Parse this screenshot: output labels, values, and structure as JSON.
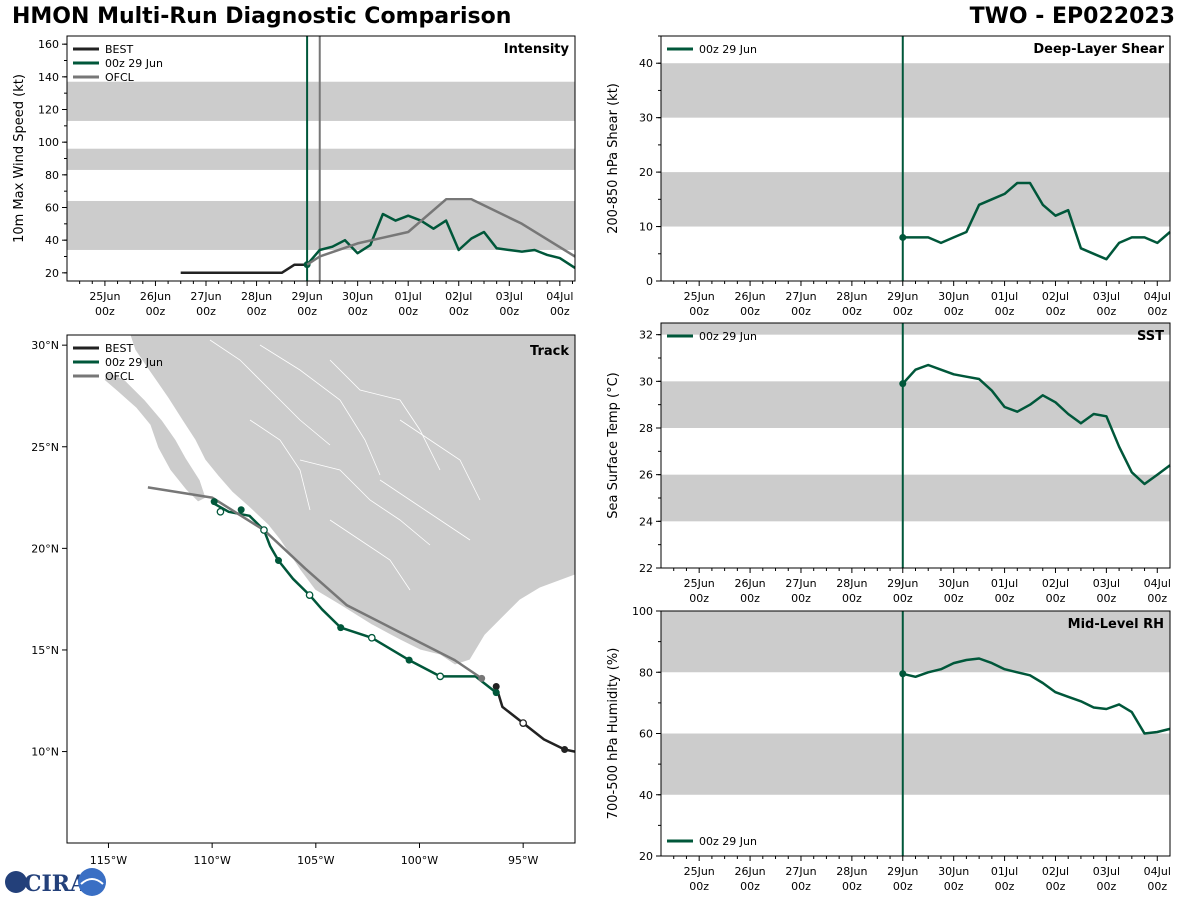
{
  "header": {
    "title": "HMON Multi-Run Diagnostic Comparison",
    "storm_id": "TWO - EP022023"
  },
  "logo": {
    "text": "CIRA",
    "icon": "cira-logo"
  },
  "colors": {
    "best": "#222222",
    "run": "#00573a",
    "ofcl": "#777777",
    "band": "#cccccc",
    "land": "#cccccc"
  },
  "legend": {
    "best": "BEST",
    "run": "00z 29 Jun",
    "ofcl": "OFCL"
  },
  "time_ticks": [
    [
      "25Jun",
      "00z"
    ],
    [
      "26Jun",
      "00z"
    ],
    [
      "27Jun",
      "00z"
    ],
    [
      "28Jun",
      "00z"
    ],
    [
      "29Jun",
      "00z"
    ],
    [
      "30Jun",
      "00z"
    ],
    [
      "01Jul",
      "00z"
    ],
    [
      "02Jul",
      "00z"
    ],
    [
      "03Jul",
      "00z"
    ],
    [
      "04Jul",
      "00z"
    ]
  ],
  "chart_data": [
    {
      "id": "intensity",
      "type": "line",
      "title": "Intensity",
      "ylabel": "10m Max Wind Speed (kt)",
      "x_unit": "days since 25Jun 00z",
      "xlim": [
        -0.75,
        9.3
      ],
      "ylim": [
        15,
        165
      ],
      "yticks": [
        20,
        40,
        60,
        80,
        100,
        120,
        140,
        160
      ],
      "bands": [
        [
          34,
          64
        ],
        [
          83,
          96
        ],
        [
          113,
          137
        ]
      ],
      "vlines": [
        {
          "x": 4.0,
          "color": "run"
        },
        {
          "x": 4.25,
          "color": "ofcl"
        }
      ],
      "series": [
        {
          "name": "BEST",
          "color": "best",
          "x": [
            1.5,
            2.0,
            2.5,
            3.0,
            3.5,
            3.75,
            4.0
          ],
          "y": [
            20,
            20,
            20,
            20,
            20,
            25,
            25
          ]
        },
        {
          "name": "00z 29 Jun",
          "color": "run",
          "marker_x": 4.0,
          "x": [
            4.0,
            4.25,
            4.5,
            4.75,
            5.0,
            5.25,
            5.5,
            5.75,
            6.0,
            6.25,
            6.5,
            6.75,
            7.0,
            7.25,
            7.5,
            7.75,
            8.0,
            8.25,
            8.5,
            8.75,
            9.0,
            9.3
          ],
          "y": [
            25,
            34,
            36,
            40,
            32,
            37,
            56,
            52,
            55,
            52,
            47,
            52,
            34,
            41,
            45,
            35,
            34,
            33,
            34,
            31,
            29,
            23
          ]
        },
        {
          "name": "OFCL",
          "color": "ofcl",
          "x": [
            4.0,
            4.25,
            5.0,
            6.0,
            6.75,
            7.25,
            8.25,
            9.3
          ],
          "y": [
            25,
            30,
            38,
            45,
            65,
            65,
            50,
            30
          ]
        }
      ]
    },
    {
      "id": "shear",
      "type": "line",
      "title": "Deep-Layer Shear",
      "ylabel": "200-850 hPa Shear (kt)",
      "xlim": [
        -0.75,
        9.25
      ],
      "ylim": [
        0,
        45
      ],
      "yticks": [
        0,
        10,
        20,
        30,
        40
      ],
      "bands": [
        [
          10,
          20
        ],
        [
          30,
          40
        ]
      ],
      "vlines": [
        {
          "x": 4.0,
          "color": "run"
        }
      ],
      "series": [
        {
          "name": "00z 29 Jun",
          "color": "run",
          "marker_x": 4.0,
          "x": [
            4.0,
            4.25,
            4.5,
            4.75,
            5.0,
            5.25,
            5.5,
            5.75,
            6.0,
            6.25,
            6.5,
            6.75,
            7.0,
            7.25,
            7.5,
            7.75,
            8.0,
            8.25,
            8.5,
            8.75,
            9.0,
            9.25
          ],
          "y": [
            8,
            8,
            8,
            7,
            8,
            9,
            14,
            15,
            16,
            18,
            18,
            14,
            12,
            13,
            6,
            5,
            4,
            7,
            8,
            8,
            7,
            9
          ]
        }
      ]
    },
    {
      "id": "sst",
      "type": "line",
      "title": "SST",
      "ylabel": "Sea Surface Temp (°C)",
      "xlim": [
        -0.75,
        9.25
      ],
      "ylim": [
        22,
        32.5
      ],
      "yticks": [
        22,
        24,
        26,
        28,
        30,
        32
      ],
      "bands": [
        [
          24,
          26
        ],
        [
          28,
          30
        ],
        [
          32,
          32.5
        ]
      ],
      "vlines": [
        {
          "x": 4.0,
          "color": "run"
        }
      ],
      "series": [
        {
          "name": "00z 29 Jun",
          "color": "run",
          "marker_x": 4.0,
          "x": [
            4.0,
            4.25,
            4.5,
            4.75,
            5.0,
            5.25,
            5.5,
            5.75,
            6.0,
            6.25,
            6.5,
            6.75,
            7.0,
            7.25,
            7.5,
            7.75,
            8.0,
            8.25,
            8.5,
            8.75,
            9.0,
            9.25
          ],
          "y": [
            29.9,
            30.5,
            30.7,
            30.5,
            30.3,
            30.2,
            30.1,
            29.6,
            28.9,
            28.7,
            29.0,
            29.4,
            29.1,
            28.6,
            28.2,
            28.6,
            28.5,
            27.2,
            26.1,
            25.6,
            26.0,
            26.4
          ]
        }
      ]
    },
    {
      "id": "rh",
      "type": "line",
      "title": "Mid-Level RH",
      "ylabel": "700-500 hPa Humidity (%)",
      "xlim": [
        -0.75,
        9.25
      ],
      "ylim": [
        20,
        100
      ],
      "yticks": [
        20,
        40,
        60,
        80,
        100
      ],
      "bands": [
        [
          40,
          60
        ],
        [
          80,
          100
        ]
      ],
      "vlines": [
        {
          "x": 4.0,
          "color": "run"
        }
      ],
      "series": [
        {
          "name": "00z 29 Jun",
          "color": "run",
          "marker_x": 4.0,
          "x": [
            4.0,
            4.25,
            4.5,
            4.75,
            5.0,
            5.25,
            5.5,
            5.75,
            6.0,
            6.25,
            6.5,
            6.75,
            7.0,
            7.25,
            7.5,
            7.75,
            8.0,
            8.25,
            8.5,
            8.75,
            9.0,
            9.25
          ],
          "y": [
            79.5,
            78.5,
            80,
            81,
            83,
            84,
            84.5,
            83,
            81,
            80,
            79,
            76.5,
            73.5,
            72,
            70.5,
            68.5,
            68,
            69.5,
            67,
            60,
            60.5,
            61.5
          ]
        }
      ]
    },
    {
      "id": "track",
      "type": "scatter",
      "title": "Track",
      "xlim": [
        -117,
        -92.5
      ],
      "ylim": [
        5.5,
        30.5
      ],
      "xticks": [
        -115,
        -110,
        -105,
        -100,
        -95
      ],
      "xtick_labels": [
        "115°W",
        "110°W",
        "105°W",
        "100°W",
        "95°W"
      ],
      "yticks": [
        10,
        15,
        20,
        25,
        30
      ],
      "ytick_labels": [
        "10°N",
        "15°N",
        "20°N",
        "25°N",
        "30°N"
      ],
      "series": [
        {
          "name": "BEST",
          "color": "best",
          "lon": [
            -92.5,
            -93.0,
            -94.0,
            -95.0,
            -96.0,
            -96.3
          ],
          "lat": [
            10.0,
            10.1,
            10.6,
            11.4,
            12.2,
            13.2
          ],
          "solid": [
            [
              -93.0,
              10.1
            ],
            [
              -96.3,
              13.2
            ]
          ],
          "open": [
            [
              -95.0,
              11.4
            ]
          ]
        },
        {
          "name": "00z 29 Jun",
          "color": "run",
          "lon": [
            -96.3,
            -97.3,
            -99.0,
            -100.5,
            -102.3,
            -103.8,
            -104.7,
            -105.3,
            -106.1,
            -106.8,
            -107.2,
            -107.5,
            -108.2,
            -109.2,
            -109.9
          ],
          "lat": [
            12.9,
            13.7,
            13.7,
            14.5,
            15.6,
            16.1,
            17.0,
            17.7,
            18.5,
            19.4,
            20.1,
            20.9,
            21.6,
            21.8,
            22.2
          ],
          "solid": [
            [
              -96.3,
              12.9
            ],
            [
              -100.5,
              14.5
            ],
            [
              -103.8,
              16.1
            ],
            [
              -106.8,
              19.4
            ],
            [
              -108.6,
              21.9
            ],
            [
              -109.9,
              22.3
            ]
          ],
          "open": [
            [
              -99.0,
              13.7
            ],
            [
              -102.3,
              15.6
            ],
            [
              -105.3,
              17.7
            ],
            [
              -107.5,
              20.9
            ],
            [
              -109.6,
              21.8
            ]
          ]
        },
        {
          "name": "OFCL",
          "color": "ofcl",
          "lon": [
            -97.0,
            -98.3,
            -101.0,
            -103.5,
            -105.5,
            -107.5,
            -110.0,
            -113.1
          ],
          "lat": [
            13.6,
            14.5,
            15.9,
            17.2,
            19.0,
            20.9,
            22.5,
            23.0
          ],
          "solid": [
            [
              -97.0,
              13.6
            ]
          ],
          "open": []
        }
      ]
    }
  ]
}
